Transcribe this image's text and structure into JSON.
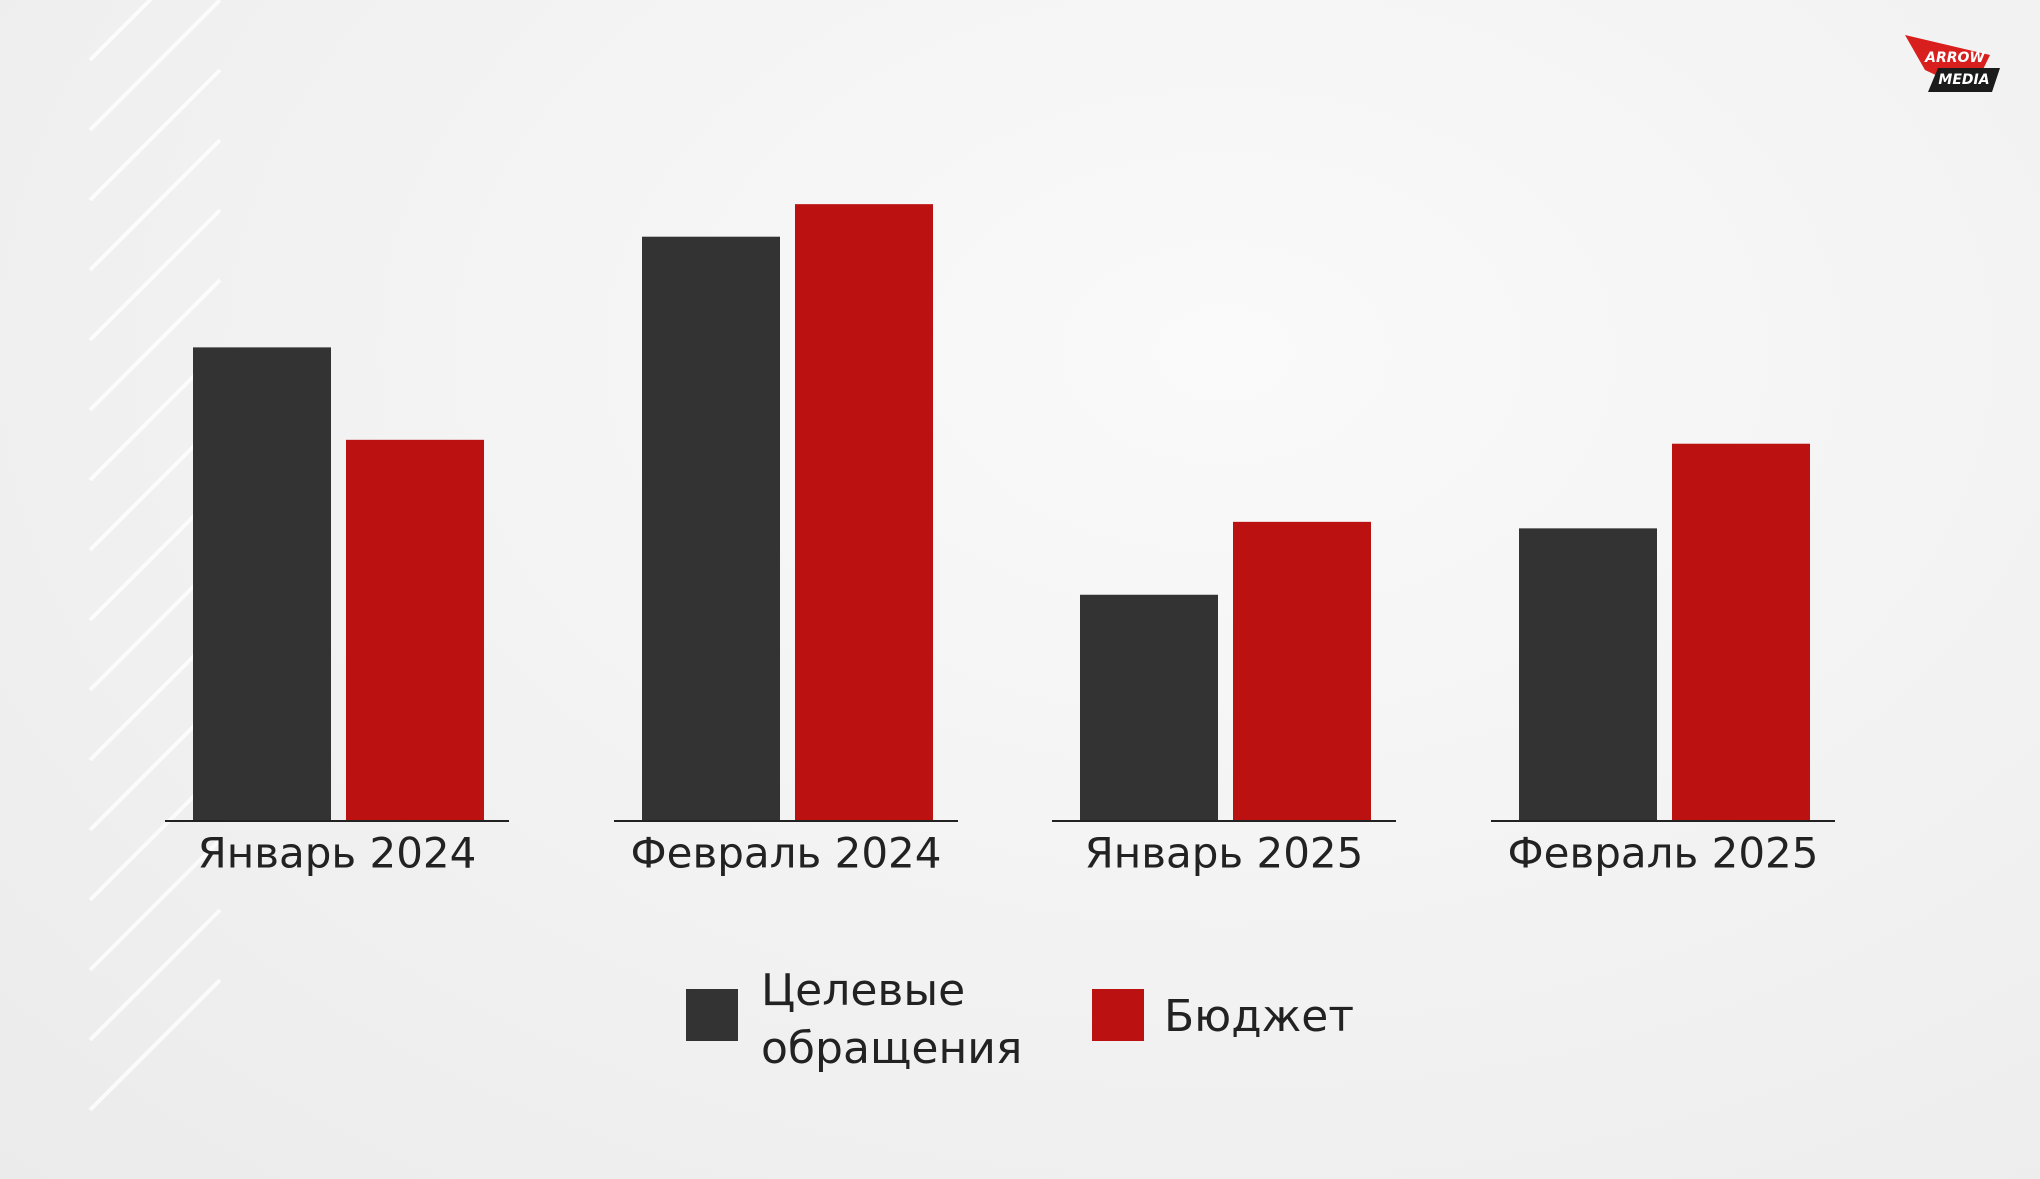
{
  "logo": [
    "ARROW",
    "MEDIA"
  ],
  "chart_data": {
    "type": "bar",
    "categories": [
      "Январь 2024",
      "Февраль 2024",
      "Январь 2025",
      "Февраль 2025"
    ],
    "series": [
      {
        "name": "Целевые обращения",
        "color": "#333333",
        "values": [
          363,
          448,
          173,
          224
        ]
      },
      {
        "name": "Бюджет",
        "color": "#bb1111",
        "values": [
          292,
          473,
          229,
          289
        ]
      }
    ],
    "ylim": [
      0,
      500
    ]
  }
}
